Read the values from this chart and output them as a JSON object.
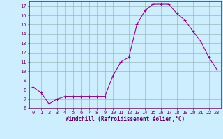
{
  "x": [
    0,
    1,
    2,
    3,
    4,
    5,
    6,
    7,
    8,
    9,
    10,
    11,
    12,
    13,
    14,
    15,
    16,
    17,
    18,
    19,
    20,
    21,
    22,
    23
  ],
  "y": [
    8.3,
    7.7,
    6.5,
    7.0,
    7.3,
    7.3,
    7.3,
    7.3,
    7.3,
    7.3,
    9.5,
    11.0,
    11.5,
    15.0,
    16.5,
    17.2,
    17.2,
    17.2,
    16.2,
    15.5,
    14.3,
    13.2,
    11.5,
    10.2
  ],
  "line_color": "#990099",
  "marker": "+",
  "marker_size": 3,
  "marker_linewidth": 0.8,
  "line_width": 0.8,
  "bg_color": "#cceeff",
  "grid_color": "#99bbbb",
  "xlabel": "Windchill (Refroidissement éolien,°C)",
  "label_color": "#660066",
  "tick_color": "#660066",
  "ylim": [
    6,
    17.5
  ],
  "xlim": [
    -0.5,
    23.5
  ],
  "yticks": [
    6,
    7,
    8,
    9,
    10,
    11,
    12,
    13,
    14,
    15,
    16,
    17
  ],
  "xticks": [
    0,
    1,
    2,
    3,
    4,
    5,
    6,
    7,
    8,
    9,
    10,
    11,
    12,
    13,
    14,
    15,
    16,
    17,
    18,
    19,
    20,
    21,
    22,
    23
  ],
  "tick_fontsize": 5.0,
  "xlabel_fontsize": 5.5
}
